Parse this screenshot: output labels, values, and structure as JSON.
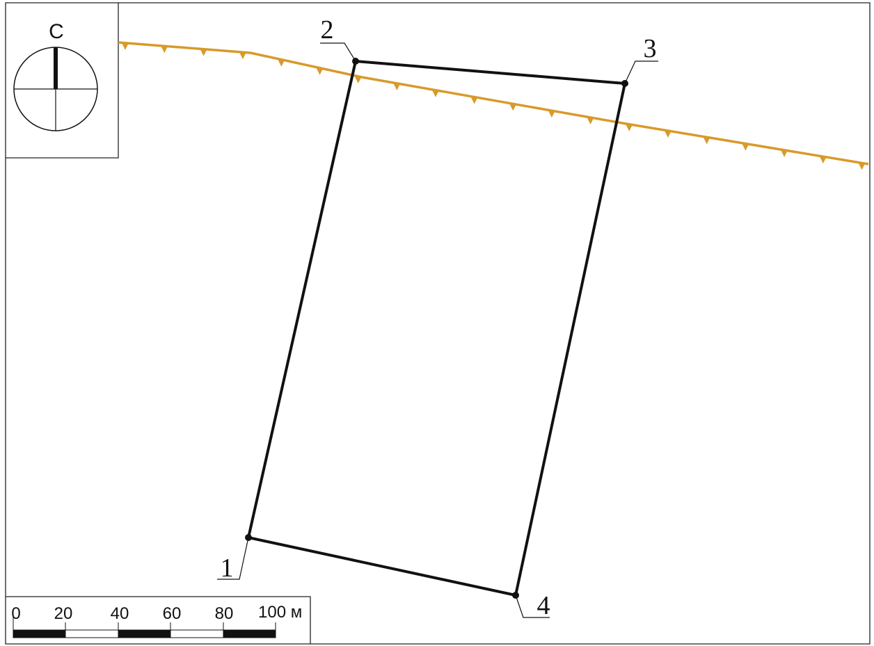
{
  "compass": {
    "north_label": "С",
    "icon": "north-arrow-icon"
  },
  "points": [
    {
      "label": "1"
    },
    {
      "label": "2"
    },
    {
      "label": "3"
    },
    {
      "label": "4"
    }
  ],
  "scale_bar": {
    "labels": [
      "0",
      "20",
      "40",
      "60",
      "80"
    ],
    "last_label": "100 м"
  },
  "colors": {
    "ridge_line": "#D89A2B",
    "boundary": "#111111",
    "frame": "#222222"
  },
  "legend_symbols": {
    "slope_line": "slope-line-icon"
  }
}
